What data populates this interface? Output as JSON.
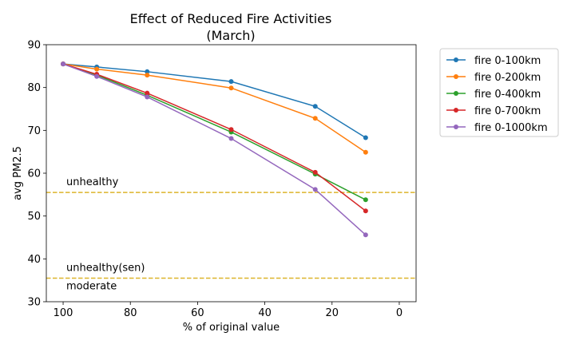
{
  "chart_data": {
    "type": "line",
    "title": "Effect of Reduced Fire Activities",
    "subtitle": "(March)",
    "xlabel": "% of original value",
    "ylabel": "avg PM2.5",
    "xlim": [
      105,
      -5
    ],
    "ylim": [
      30,
      90
    ],
    "x_inverted": true,
    "xticks": [
      100,
      80,
      60,
      40,
      20,
      0
    ],
    "yticks": [
      30,
      40,
      50,
      60,
      70,
      80,
      90
    ],
    "grid": false,
    "legend_position": "outside-right",
    "x": [
      100,
      90,
      75,
      50,
      25,
      10
    ],
    "series": [
      {
        "name": "fire 0-100km",
        "color": "#1f77b4",
        "values": [
          85.5,
          84.8,
          83.7,
          81.4,
          75.6,
          68.3
        ]
      },
      {
        "name": "fire 0-200km",
        "color": "#ff7f0e",
        "values": [
          85.5,
          84.3,
          82.9,
          79.9,
          72.8,
          64.9
        ]
      },
      {
        "name": "fire 0-400km",
        "color": "#2ca02c",
        "values": [
          85.5,
          82.9,
          78.2,
          69.6,
          59.8,
          53.8
        ]
      },
      {
        "name": "fire 0-700km",
        "color": "#d62728",
        "values": [
          85.5,
          83.1,
          78.7,
          70.2,
          60.2,
          51.2
        ]
      },
      {
        "name": "fire 0-1000km",
        "color": "#9467bd",
        "values": [
          85.5,
          82.6,
          77.8,
          68.1,
          56.2,
          45.6
        ]
      }
    ],
    "reference_lines": [
      {
        "y": 55.5,
        "color": "#ddb42a",
        "style": "dashed",
        "label_above": "unhealthy"
      },
      {
        "y": 35.5,
        "color": "#ddb42a",
        "style": "dashed",
        "label_above": "unhealthy(sen)",
        "label_below": "moderate"
      }
    ]
  }
}
